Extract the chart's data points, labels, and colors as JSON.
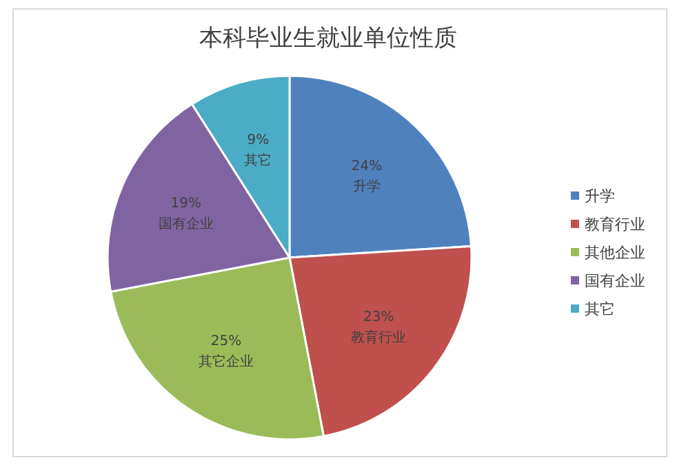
{
  "chart_data": {
    "type": "pie",
    "title": "本科毕业生就业单位性质",
    "categories": [
      "升学",
      "教育行业",
      "其他企业",
      "国有企业",
      "其它"
    ],
    "values": [
      24,
      23,
      25,
      19,
      9
    ],
    "value_labels": [
      "24%\n升学",
      "23%\n教育行业",
      "25%\n其它企业",
      "19%\n国有企业",
      "9%\n其它"
    ],
    "colors": [
      "#4f81bd",
      "#c0504d",
      "#9bbb59",
      "#8064a2",
      "#4bacc6"
    ],
    "legend": "right"
  }
}
